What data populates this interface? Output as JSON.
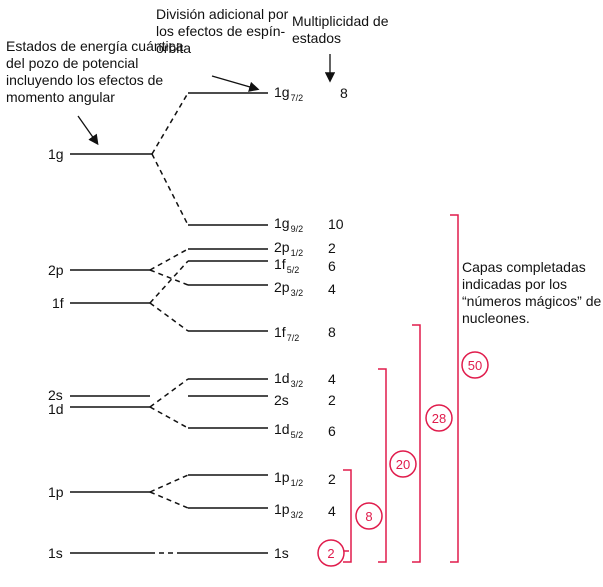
{
  "notes": {
    "left": "Estados de energía cuántica del pozo de potencial incluyendo los efectos de momento angular",
    "middle": "División adicional por los efectos de espín-órbita",
    "right": "Multiplicidad de estados",
    "shells": "Capas completadas indicadas por los “números mágicos” de nucleones."
  },
  "left_levels": [
    "1g",
    "2p",
    "1f",
    "2s",
    "1d",
    "1p",
    "1s"
  ],
  "right_levels": [
    {
      "base": "1g",
      "sub": "7/2",
      "mult": "8"
    },
    {
      "base": "1g",
      "sub": "9/2",
      "mult": "10"
    },
    {
      "base": "2p",
      "sub": "1/2",
      "mult": "2"
    },
    {
      "base": "1f",
      "sub": "5/2",
      "mult": "6"
    },
    {
      "base": "2p",
      "sub": "3/2",
      "mult": "4"
    },
    {
      "base": "1f",
      "sub": "7/2",
      "mult": "8"
    },
    {
      "base": "1d",
      "sub": "3/2",
      "mult": "4"
    },
    {
      "base": "2s",
      "sub": "",
      "mult": "2"
    },
    {
      "base": "1d",
      "sub": "5/2",
      "mult": "6"
    },
    {
      "base": "1p",
      "sub": "1/2",
      "mult": "2"
    },
    {
      "base": "1p",
      "sub": "3/2",
      "mult": "4"
    },
    {
      "base": "1s",
      "sub": "",
      "mult": "2"
    }
  ],
  "magic_numbers": [
    "2",
    "8",
    "20",
    "28",
    "50"
  ],
  "colors": {
    "line": "#111111",
    "magic": "#e01c4c"
  }
}
